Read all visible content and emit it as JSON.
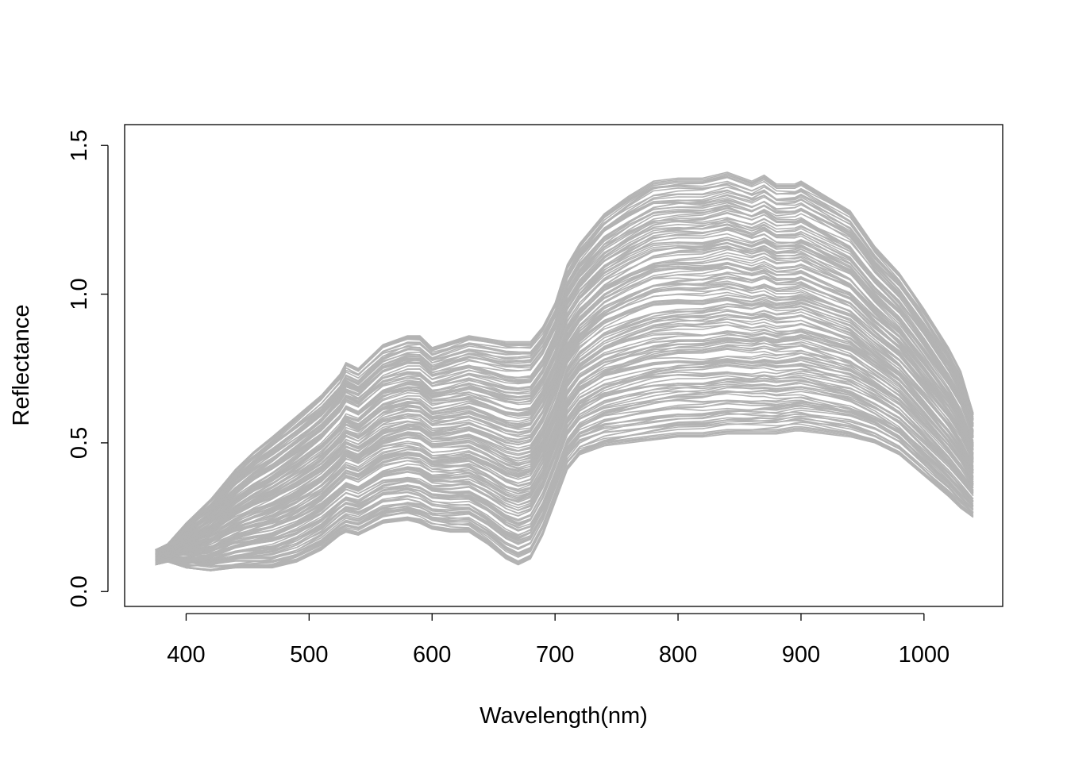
{
  "chart_data": {
    "type": "line",
    "title": "",
    "xlabel": "Wavelength(nm)",
    "ylabel": "Reflectance",
    "xlim": [
      350,
      1064
    ],
    "ylim": [
      -0.05,
      1.57
    ],
    "x_ticks": [
      400,
      500,
      600,
      700,
      800,
      900,
      1000
    ],
    "y_ticks": [
      0.0,
      0.5,
      1.0,
      1.5
    ],
    "x_tick_labels": [
      "400",
      "500",
      "600",
      "700",
      "800",
      "900",
      "1000"
    ],
    "y_tick_labels": [
      "0.0",
      "0.5",
      "1.0",
      "1.5"
    ],
    "grid": false,
    "legend": "none",
    "line_color": "#B3B3B3",
    "series_count": 180,
    "wavelengths": [
      375,
      385,
      400,
      420,
      440,
      455,
      470,
      490,
      510,
      525,
      530,
      540,
      560,
      580,
      590,
      600,
      615,
      630,
      645,
      660,
      670,
      680,
      690,
      700,
      710,
      720,
      740,
      760,
      780,
      800,
      820,
      840,
      860,
      870,
      880,
      895,
      900,
      920,
      940,
      960,
      980,
      1000,
      1020,
      1030,
      1040
    ],
    "envelope": {
      "upper": [
        0.14,
        0.16,
        0.23,
        0.31,
        0.41,
        0.47,
        0.52,
        0.59,
        0.66,
        0.73,
        0.77,
        0.75,
        0.83,
        0.86,
        0.86,
        0.82,
        0.84,
        0.86,
        0.85,
        0.84,
        0.84,
        0.84,
        0.89,
        0.97,
        1.1,
        1.17,
        1.27,
        1.33,
        1.38,
        1.39,
        1.39,
        1.41,
        1.38,
        1.4,
        1.37,
        1.37,
        1.38,
        1.33,
        1.28,
        1.16,
        1.07,
        0.95,
        0.82,
        0.74,
        0.6
      ],
      "lower": [
        0.09,
        0.1,
        0.08,
        0.07,
        0.08,
        0.08,
        0.08,
        0.1,
        0.14,
        0.19,
        0.2,
        0.19,
        0.23,
        0.24,
        0.23,
        0.21,
        0.2,
        0.2,
        0.16,
        0.11,
        0.09,
        0.11,
        0.19,
        0.3,
        0.41,
        0.46,
        0.49,
        0.5,
        0.51,
        0.52,
        0.52,
        0.53,
        0.53,
        0.53,
        0.53,
        0.54,
        0.54,
        0.53,
        0.52,
        0.5,
        0.46,
        0.39,
        0.32,
        0.28,
        0.25
      ]
    }
  }
}
